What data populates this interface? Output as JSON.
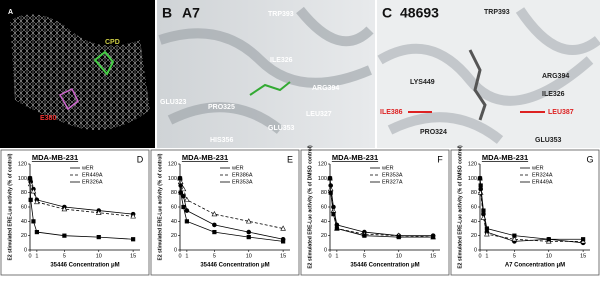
{
  "panels": {
    "a": {
      "letter": "A",
      "labels": [
        "CPD",
        "E380"
      ]
    },
    "b": {
      "letter": "B",
      "compound": "A7",
      "labels": [
        "TRP393",
        "ILE326",
        "ARG394",
        "GLU323",
        "PRO325",
        "LEU327",
        "GLU353",
        "HIS356"
      ]
    },
    "c": {
      "letter": "C",
      "compound": "48693",
      "labels": [
        "TRP393",
        "LYS449",
        "ARG394",
        "ILE326",
        "ILE386",
        "LEU387",
        "PRO324",
        "GLU353"
      ]
    }
  },
  "chart_data": [
    {
      "type": "line",
      "panel": "D",
      "title": "MDA-MB-231",
      "x_label": "35446 Concentration μM",
      "y_label": "E2 stimulated ERE-Luc activity (% of control)",
      "x": [
        0,
        0.1,
        0.5,
        1,
        5,
        10,
        15
      ],
      "xlim": [
        0,
        16
      ],
      "xticks": [
        0,
        1,
        5,
        10,
        15
      ],
      "ylim": [
        0,
        120
      ],
      "yticks": [
        0,
        20,
        40,
        60,
        80,
        100,
        120
      ],
      "series": [
        {
          "name": "wER",
          "color": "#000",
          "marker": "circle",
          "dash": false,
          "values": [
            100,
            95,
            85,
            70,
            60,
            55,
            50
          ]
        },
        {
          "name": "ER449A",
          "color": "#000",
          "marker": "triangle",
          "dash": true,
          "values": [
            100,
            92,
            82,
            67,
            57,
            52,
            47
          ]
        },
        {
          "name": "ER326A",
          "color": "#000",
          "marker": "square",
          "dash": false,
          "values": [
            100,
            70,
            40,
            25,
            20,
            18,
            15
          ]
        }
      ]
    },
    {
      "type": "line",
      "panel": "E",
      "title": "MDA-MB-231",
      "x_label": "35446 Concentration μM",
      "y_label": "E2 stimulated ERE-Luc activity (% of control)",
      "x": [
        0,
        0.1,
        0.5,
        1,
        5,
        10,
        15
      ],
      "xlim": [
        0,
        16
      ],
      "xticks": [
        0,
        1,
        5,
        10,
        15
      ],
      "ylim": [
        0,
        120
      ],
      "yticks": [
        0,
        20,
        40,
        60,
        80,
        100,
        120
      ],
      "series": [
        {
          "name": "wER",
          "color": "#000",
          "marker": "circle",
          "dash": false,
          "values": [
            100,
            90,
            75,
            55,
            35,
            25,
            15
          ]
        },
        {
          "name": "ER386A",
          "color": "#000",
          "marker": "triangle",
          "dash": true,
          "values": [
            100,
            95,
            85,
            70,
            50,
            40,
            30
          ]
        },
        {
          "name": "ER353A",
          "color": "#000",
          "marker": "square",
          "dash": false,
          "values": [
            100,
            80,
            60,
            40,
            25,
            18,
            12
          ]
        }
      ]
    },
    {
      "type": "line",
      "panel": "F",
      "title": "MDA-MB-231",
      "x_label": "35446 Concentration μM",
      "y_label": "E2 stimulated ERE-Luc activity (% of DMSO control)",
      "x": [
        0,
        0.1,
        0.5,
        1,
        5,
        10,
        15
      ],
      "xlim": [
        0,
        16
      ],
      "xticks": [
        0,
        1,
        5,
        10,
        15
      ],
      "ylim": [
        0,
        120
      ],
      "yticks": [
        0,
        20,
        40,
        60,
        80,
        100,
        120
      ],
      "series": [
        {
          "name": "wER",
          "color": "#000",
          "marker": "circle",
          "dash": false,
          "values": [
            100,
            90,
            60,
            35,
            25,
            20,
            20
          ]
        },
        {
          "name": "ER353A",
          "color": "#000",
          "marker": "triangle",
          "dash": true,
          "values": [
            100,
            85,
            55,
            30,
            22,
            20,
            18
          ]
        },
        {
          "name": "ER327A",
          "color": "#000",
          "marker": "square",
          "dash": false,
          "values": [
            100,
            80,
            50,
            30,
            20,
            18,
            18
          ]
        }
      ]
    },
    {
      "type": "line",
      "panel": "G",
      "title": "MDA-MB-231",
      "x_label": "A7 Concentration μM",
      "y_label": "E2 stimulated ERE-Luc activity (% of DMSO control)",
      "x": [
        0,
        0.1,
        0.5,
        1,
        5,
        10,
        15
      ],
      "xlim": [
        0,
        16
      ],
      "xticks": [
        0,
        1,
        5,
        10,
        15
      ],
      "ylim": [
        0,
        120
      ],
      "yticks": [
        0,
        20,
        40,
        60,
        80,
        100,
        120
      ],
      "series": [
        {
          "name": "wER",
          "color": "#000",
          "marker": "circle",
          "dash": false,
          "values": [
            100,
            85,
            50,
            25,
            12,
            15,
            10
          ]
        },
        {
          "name": "ER324A",
          "color": "#000",
          "marker": "triangle",
          "dash": true,
          "values": [
            100,
            80,
            45,
            22,
            15,
            12,
            12
          ]
        },
        {
          "name": "ER449A",
          "color": "#000",
          "marker": "square",
          "dash": false,
          "values": [
            100,
            90,
            55,
            30,
            20,
            15,
            15
          ]
        }
      ]
    }
  ]
}
